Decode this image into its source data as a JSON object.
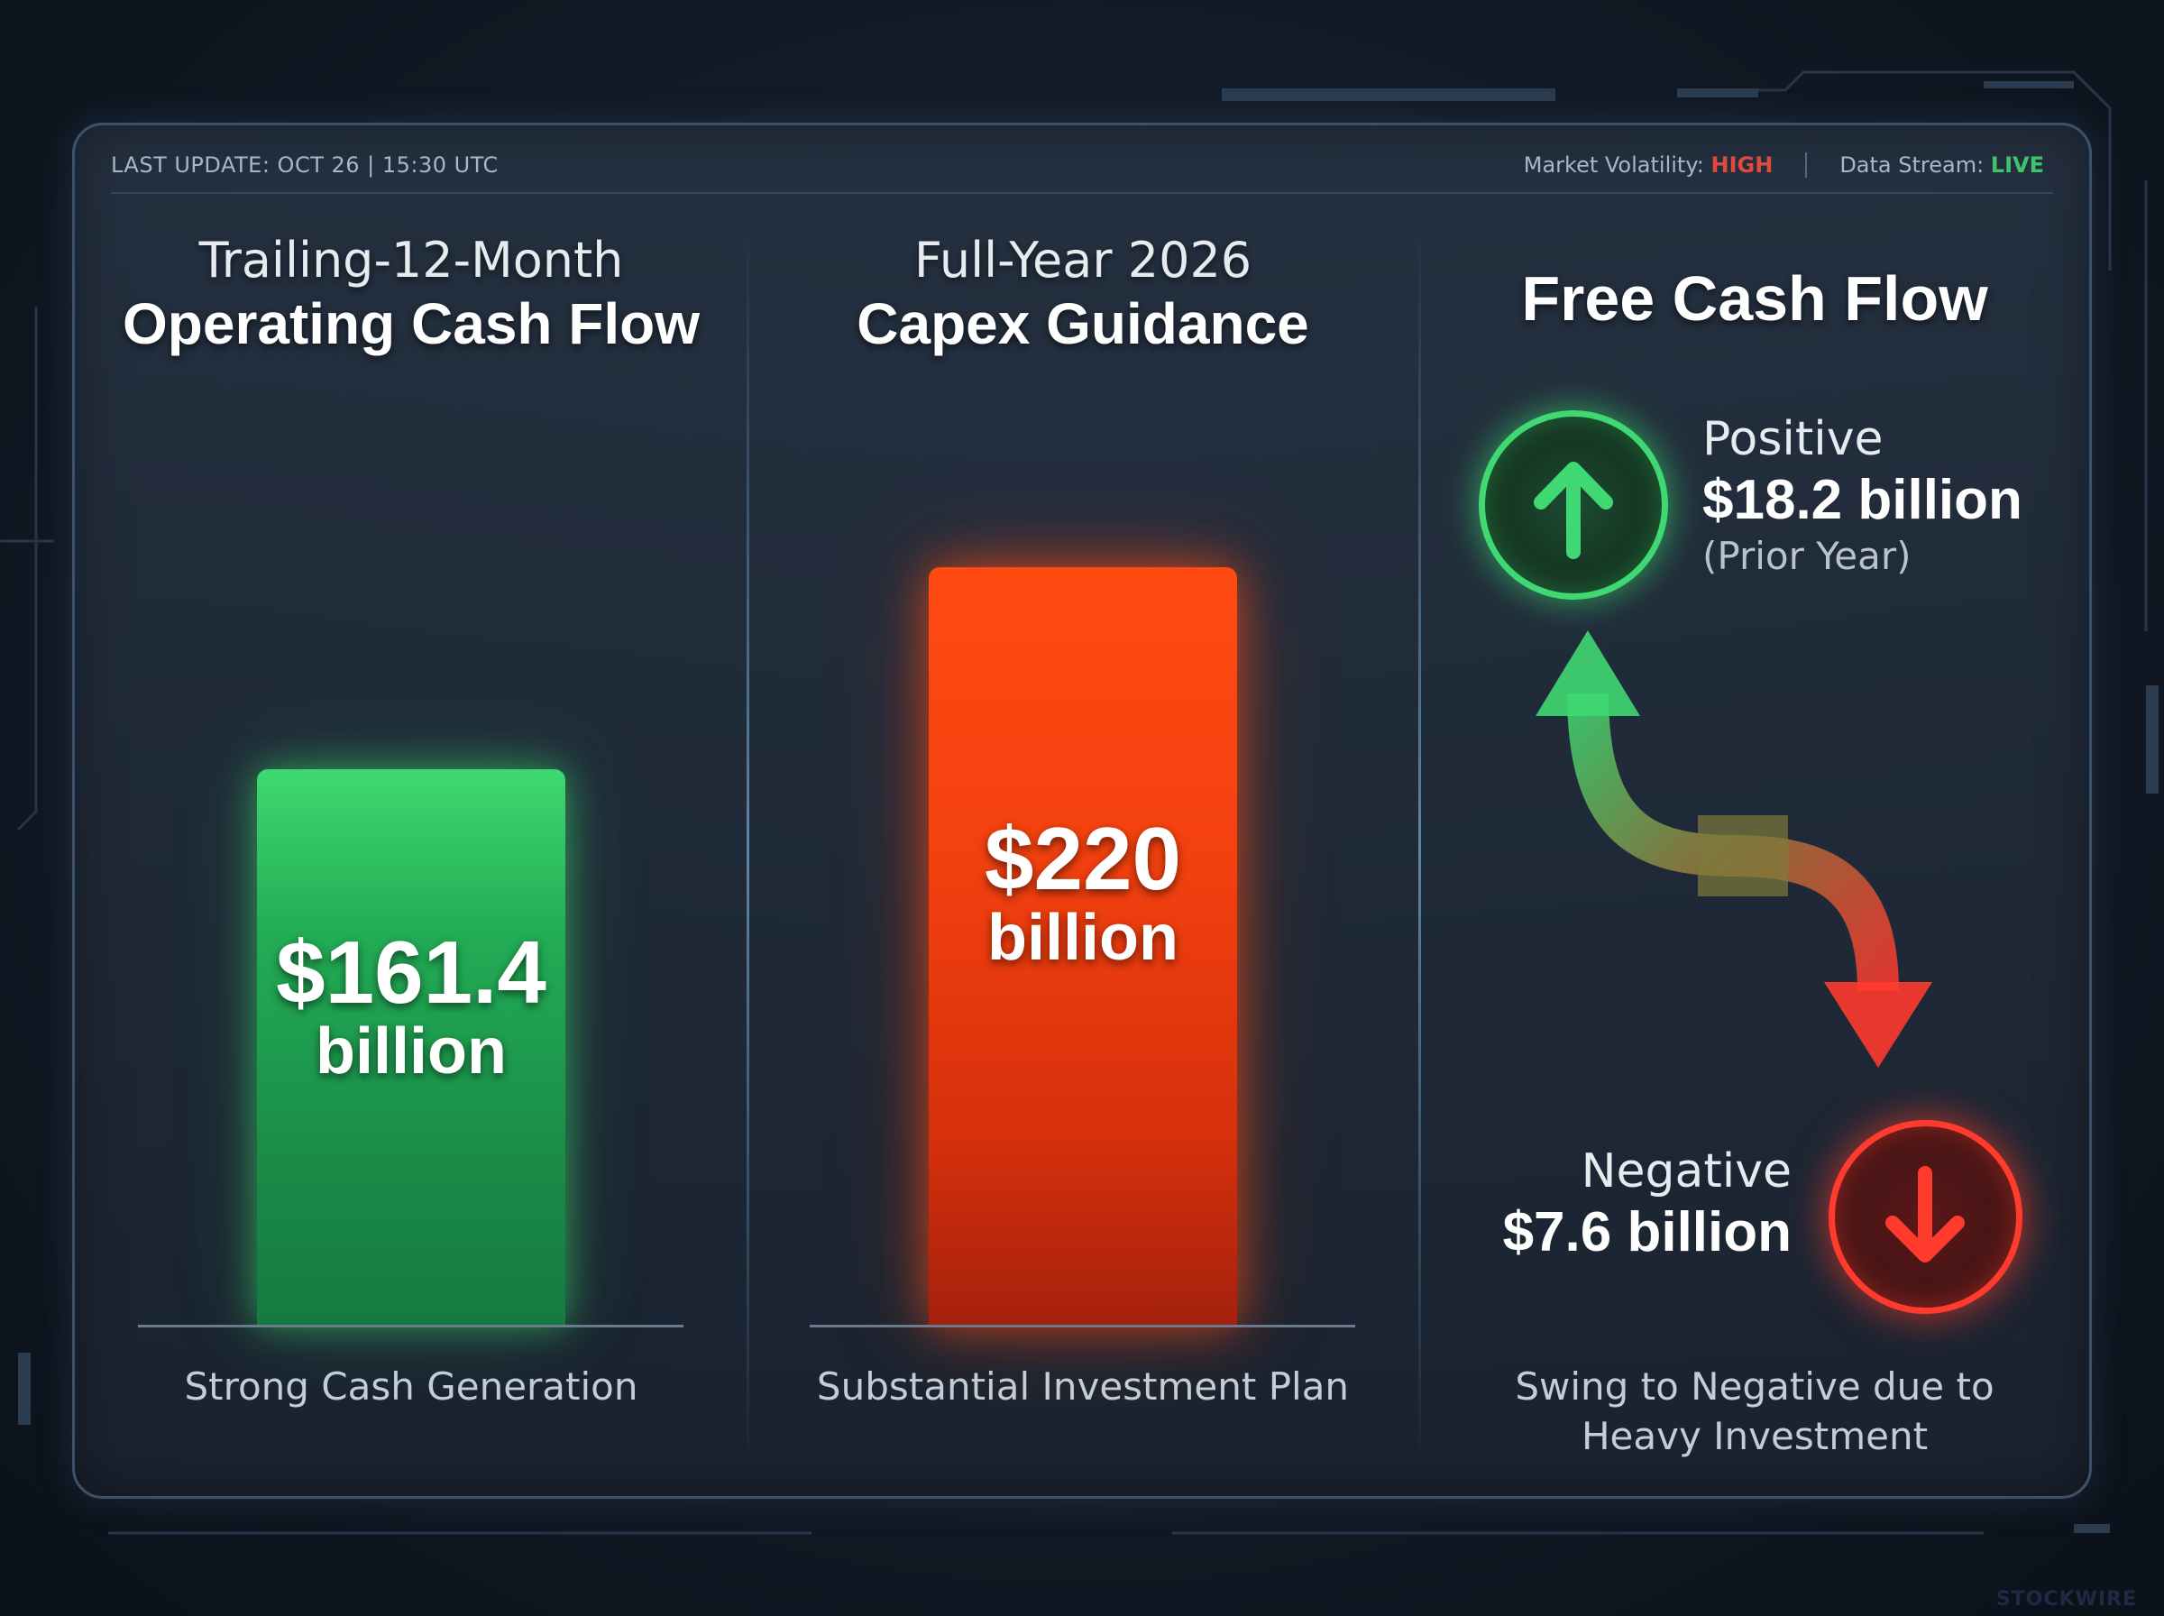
{
  "header": {
    "last_update": "LAST UPDATE: OCT 26 | 15:30 UTC",
    "volatility_label": "Market Volatility: ",
    "volatility_value": "HIGH",
    "stream_label": "Data Stream: ",
    "stream_value": "LIVE"
  },
  "columns": [
    {
      "title_line1": "Trailing-12-Month",
      "title_line2": "Operating Cash Flow",
      "value": "$161.4",
      "unit": "billion",
      "caption": "Strong Cash Generation"
    },
    {
      "title_line1": "Full-Year 2026",
      "title_line2": "Capex Guidance",
      "value": "$220",
      "unit": "billion",
      "caption": "Substantial Investment Plan"
    },
    {
      "title": "Free Cash Flow",
      "positive_label": "Positive",
      "positive_value": "$18.2 billion",
      "positive_note": "(Prior Year)",
      "negative_label": "Negative",
      "negative_value": "$7.6 billion",
      "caption_line1": "Swing to Negative due to",
      "caption_line2": "Heavy Investment"
    }
  ],
  "bars": {
    "scale_max": 220,
    "operating_cash_flow": 161.4,
    "capex_guidance": 220
  },
  "colors": {
    "positive": "#3fd870",
    "negative": "#ff4a12",
    "high": "#e04a3a",
    "live": "#3fc36b"
  },
  "watermark": "STOCKWIRE"
}
